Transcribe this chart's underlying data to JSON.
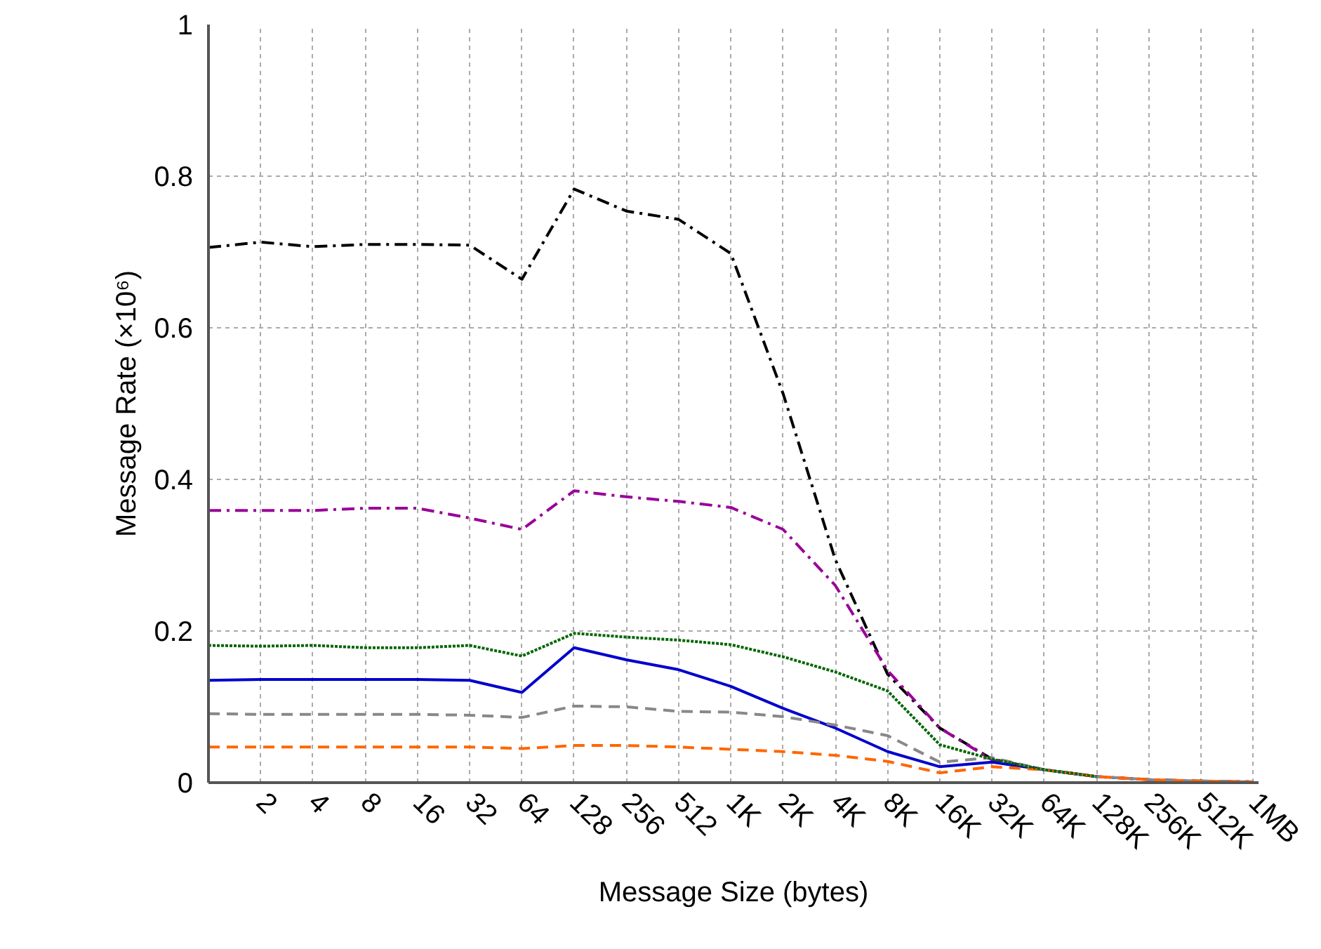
{
  "chart_data": {
    "type": "line",
    "xlabel": "Message Size (bytes)",
    "ylabel": "Message Rate (×10⁶)",
    "categories": [
      null,
      "2",
      "4",
      "8",
      "16",
      "32",
      "64",
      "128",
      "256",
      "512",
      "1K",
      "2K",
      "4K",
      "8K",
      "16K",
      "32K",
      "64K",
      "128K",
      "256K",
      "512K",
      "1MB"
    ],
    "ylim": [
      0,
      1
    ],
    "yticks": [
      0,
      0.2,
      0.4,
      0.6,
      0.8,
      1
    ],
    "grid": true,
    "marker": "none",
    "series": [
      {
        "color": "#000000",
        "line_style": "dashdot",
        "values": [
          0.706,
          0.713,
          0.707,
          0.71,
          0.71,
          0.709,
          0.664,
          0.783,
          0.754,
          0.743,
          0.698,
          0.513,
          0.294,
          0.143,
          0.072,
          0.031,
          0.017,
          0.008,
          0.004,
          0.002,
          0.001
        ]
      },
      {
        "color": "#990099",
        "line_style": "dashdot",
        "values": [
          0.359,
          0.359,
          0.359,
          0.362,
          0.362,
          0.349,
          0.334,
          0.385,
          0.377,
          0.371,
          0.363,
          0.334,
          0.26,
          0.148,
          0.072,
          0.03,
          0.017,
          0.008,
          0.004,
          0.002,
          0.001
        ]
      },
      {
        "color": "#006600",
        "line_style": "dotted",
        "values": [
          0.181,
          0.18,
          0.181,
          0.178,
          0.178,
          0.181,
          0.167,
          0.197,
          0.192,
          0.188,
          0.182,
          0.166,
          0.146,
          0.121,
          0.05,
          0.031,
          0.017,
          0.008,
          null,
          null,
          null
        ]
      },
      {
        "color": "#0000cc",
        "line_style": "solid",
        "values": [
          0.135,
          0.136,
          0.136,
          0.136,
          0.136,
          0.135,
          0.119,
          0.178,
          0.162,
          0.149,
          0.127,
          0.098,
          0.072,
          0.041,
          0.021,
          0.027,
          0.017,
          0.008,
          null,
          null,
          null
        ]
      },
      {
        "color": "#888888",
        "line_style": "dashed",
        "values": [
          0.091,
          0.09,
          0.09,
          0.09,
          0.09,
          0.089,
          0.086,
          0.101,
          0.1,
          0.094,
          0.093,
          0.087,
          0.076,
          0.062,
          0.027,
          0.033,
          0.017,
          0.008,
          0.004,
          0.002,
          0.001
        ]
      },
      {
        "color": "#ff6600",
        "line_style": "dashed",
        "values": [
          0.047,
          0.047,
          0.047,
          0.047,
          0.047,
          0.047,
          0.045,
          0.049,
          0.049,
          0.047,
          0.044,
          0.041,
          0.036,
          0.028,
          0.013,
          0.021,
          0.017,
          0.008,
          0.004,
          0.002,
          0.001
        ]
      }
    ]
  }
}
